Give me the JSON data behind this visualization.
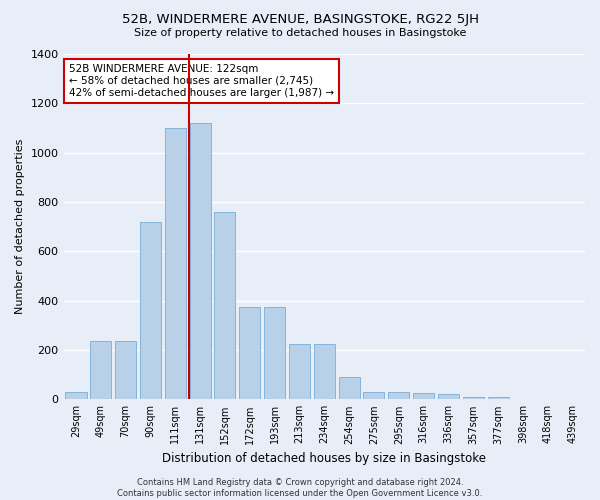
{
  "title": "52B, WINDERMERE AVENUE, BASINGSTOKE, RG22 5JH",
  "subtitle": "Size of property relative to detached houses in Basingstoke",
  "xlabel": "Distribution of detached houses by size in Basingstoke",
  "ylabel": "Number of detached properties",
  "categories": [
    "29sqm",
    "49sqm",
    "70sqm",
    "90sqm",
    "111sqm",
    "131sqm",
    "152sqm",
    "172sqm",
    "193sqm",
    "213sqm",
    "234sqm",
    "254sqm",
    "275sqm",
    "295sqm",
    "316sqm",
    "336sqm",
    "357sqm",
    "377sqm",
    "398sqm",
    "418sqm",
    "439sqm"
  ],
  "values": [
    30,
    235,
    235,
    720,
    1100,
    1120,
    760,
    375,
    375,
    225,
    225,
    90,
    30,
    28,
    25,
    20,
    10,
    10,
    0,
    0,
    0
  ],
  "bar_color": "#b8d0e8",
  "bar_edge_color": "#7aaed6",
  "property_line_x": 4.57,
  "property_line_color": "#cc0000",
  "annotation_text": "52B WINDERMERE AVENUE: 122sqm\n← 58% of detached houses are smaller (2,745)\n42% of semi-detached houses are larger (1,987) →",
  "annotation_box_color": "#ffffff",
  "annotation_box_edge_color": "#cc0000",
  "ylim": [
    0,
    1400
  ],
  "yticks": [
    0,
    200,
    400,
    600,
    800,
    1000,
    1200,
    1400
  ],
  "bg_color": "#e8eef8",
  "grid_color": "#ffffff",
  "footer": "Contains HM Land Registry data © Crown copyright and database right 2024.\nContains public sector information licensed under the Open Government Licence v3.0."
}
